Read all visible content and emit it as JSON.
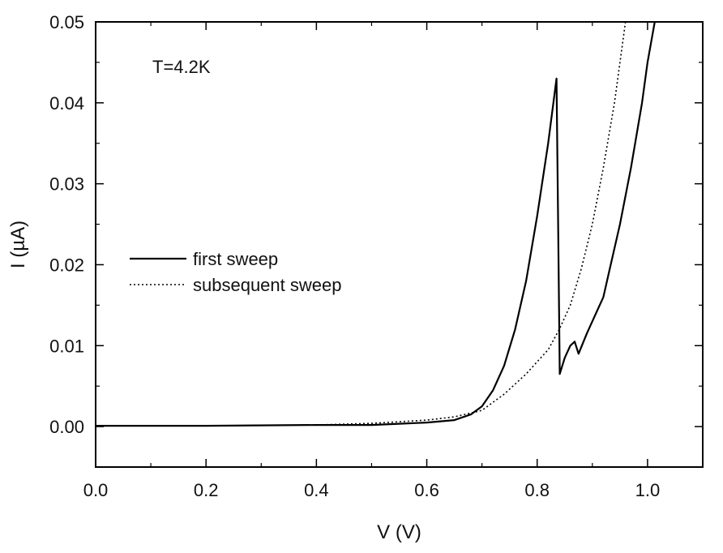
{
  "chart_data": {
    "type": "line",
    "title": "",
    "xlabel": "V (V)",
    "ylabel": "I (µA)",
    "xlim": [
      0.0,
      1.1
    ],
    "ylim": [
      -0.005,
      0.05
    ],
    "xticks": [
      "0.0",
      "0.2",
      "0.4",
      "0.6",
      "0.8",
      "1.0"
    ],
    "yticks": [
      "0.00",
      "0.01",
      "0.02",
      "0.03",
      "0.04",
      "0.05"
    ],
    "grid": false,
    "legend_position": "middle-left",
    "annotation": "T=4.2K",
    "series": [
      {
        "name": "first sweep",
        "style": "solid",
        "color": "#000000",
        "points": [
          [
            0.0,
            0.0001
          ],
          [
            0.2,
            0.0001
          ],
          [
            0.4,
            0.0002
          ],
          [
            0.5,
            0.0002
          ],
          [
            0.6,
            0.0005
          ],
          [
            0.65,
            0.0008
          ],
          [
            0.68,
            0.0015
          ],
          [
            0.7,
            0.0025
          ],
          [
            0.72,
            0.0045
          ],
          [
            0.74,
            0.0075
          ],
          [
            0.76,
            0.012
          ],
          [
            0.78,
            0.018
          ],
          [
            0.8,
            0.026
          ],
          [
            0.82,
            0.035
          ],
          [
            0.835,
            0.043
          ],
          [
            0.838,
            0.025
          ],
          [
            0.841,
            0.0065
          ],
          [
            0.85,
            0.0085
          ],
          [
            0.86,
            0.01
          ],
          [
            0.868,
            0.0105
          ],
          [
            0.875,
            0.009
          ],
          [
            0.89,
            0.0115
          ],
          [
            0.9,
            0.013
          ],
          [
            0.92,
            0.016
          ],
          [
            0.93,
            0.019
          ],
          [
            0.95,
            0.025
          ],
          [
            0.97,
            0.032
          ],
          [
            0.99,
            0.04
          ],
          [
            1.0,
            0.045
          ],
          [
            1.013,
            0.05
          ]
        ]
      },
      {
        "name": "subsequent sweep",
        "style": "dotted",
        "color": "#000000",
        "points": [
          [
            0.0,
            0.0001
          ],
          [
            0.2,
            0.0001
          ],
          [
            0.4,
            0.0002
          ],
          [
            0.5,
            0.0004
          ],
          [
            0.6,
            0.0008
          ],
          [
            0.65,
            0.0012
          ],
          [
            0.7,
            0.002
          ],
          [
            0.74,
            0.004
          ],
          [
            0.78,
            0.0065
          ],
          [
            0.8,
            0.008
          ],
          [
            0.82,
            0.0095
          ],
          [
            0.84,
            0.012
          ],
          [
            0.86,
            0.015
          ],
          [
            0.88,
            0.0195
          ],
          [
            0.9,
            0.025
          ],
          [
            0.92,
            0.032
          ],
          [
            0.94,
            0.04
          ],
          [
            0.96,
            0.05
          ]
        ]
      }
    ]
  }
}
